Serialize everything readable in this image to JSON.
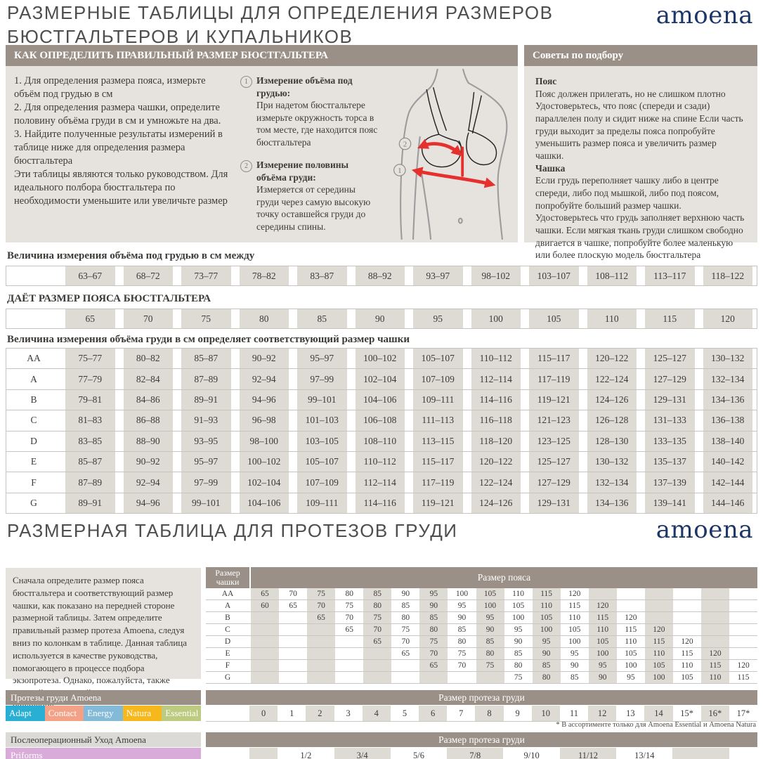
{
  "brand": {
    "wordmark": "amoena",
    "color": "#1c3767"
  },
  "header": {
    "title_line1": "РАЗМЕРНЫЕ ТАБЛИЦЫ ДЛЯ ОПРЕДЕЛЕНИЯ РАЗМЕРОВ",
    "title_line2": "БЮСТГАЛЬТЕРОВ И КУПАЛЬНИКОВ"
  },
  "how_to": {
    "header": "КАК ОПРЕДЕЛИТЬ ПРАВИЛЬНЫЙ РАЗМЕР БЮСТГАЛЬТЕРА",
    "steps": [
      "1. Для определения размера пояса, измерьте объём под грудью в см",
      "2. Для определения размера чашки, определите половину объёма груди в см и умножьте на два.",
      "3. Найдите полученные результаты измерений в таблице ниже для определения размера бюстгальтера",
      "Эти таблицы являются только руководством. Для идеального полбора бюстгальтера по необходимости уменьшите или увеличьте размер"
    ],
    "callouts": [
      {
        "num": "1",
        "title": "Измерение объёма под грудью:",
        "body": "При надетом бюстгальтере измерьте окружность торса в том месте, где находится пояс бюстгальтера"
      },
      {
        "num": "2",
        "title": "Измерение половины объёма груди:",
        "body": "Измеряется от середины груди через самую высокую точку оставшейся груди до середины спины."
      }
    ]
  },
  "tips": {
    "header": "Советы по подбору",
    "sections": [
      {
        "title": "Пояс",
        "body": "Пояс должен прилегать, но не слишком плотно Удостоверьтесь, что пояс (спереди и сзади) параллелен полу и сидит ниже на спине Если часть груди выходит за пределы пояса попробуйте уменьшить размер пояса и увеличить размер чашки."
      },
      {
        "title": "Чашка",
        "body": "Если грудь переполняет чашку либо в центре спереди, либо под мышкой, либо под поясом, попробуйте больший размер чашки. Удостоверьтесь что грудь заполняет верхнюю часть чашки. Если мягкая ткань груди слишком свободно двигается в чашке, попробуйте более маленькую или более плоскую модель бюстгальтера"
      }
    ]
  },
  "underband": {
    "heading": "Величина измерения объёма под грудью в см между",
    "values": [
      "63–67",
      "68–72",
      "73–77",
      "78–82",
      "83–87",
      "88–92",
      "93–97",
      "98–102",
      "103–107",
      "108–112",
      "113–117",
      "118–122"
    ]
  },
  "band": {
    "heading": "ДАЁТ РАЗМЕР ПОЯСА БЮСТГАЛЬТЕРА",
    "values": [
      "65",
      "70",
      "75",
      "80",
      "85",
      "90",
      "95",
      "100",
      "105",
      "110",
      "115",
      "120"
    ]
  },
  "cup_table": {
    "heading": "Величина измерения объёма груди в см определяет соответствующий размер чашки",
    "rows": [
      {
        "cup": "AA",
        "values": [
          "75–77",
          "80–82",
          "85–87",
          "90–92",
          "95–97",
          "100–102",
          "105–107",
          "110–112",
          "115–117",
          "120–122",
          "125–127",
          "130–132"
        ]
      },
      {
        "cup": "A",
        "values": [
          "77–79",
          "82–84",
          "87–89",
          "92–94",
          "97–99",
          "102–104",
          "107–109",
          "112–114",
          "117–119",
          "122–124",
          "127–129",
          "132–134"
        ]
      },
      {
        "cup": "B",
        "values": [
          "79–81",
          "84–86",
          "89–91",
          "94–96",
          "99–101",
          "104–106",
          "109–111",
          "114–116",
          "119–121",
          "124–126",
          "129–131",
          "134–136"
        ]
      },
      {
        "cup": "C",
        "values": [
          "81–83",
          "86–88",
          "91–93",
          "96–98",
          "101–103",
          "106–108",
          "111–113",
          "116–118",
          "121–123",
          "126–128",
          "131–133",
          "136–138"
        ]
      },
      {
        "cup": "D",
        "values": [
          "83–85",
          "88–90",
          "93–95",
          "98–100",
          "103–105",
          "108–110",
          "113–115",
          "118–120",
          "123–125",
          "128–130",
          "133–135",
          "138–140"
        ]
      },
      {
        "cup": "E",
        "values": [
          "85–87",
          "90–92",
          "95–97",
          "100–102",
          "105–107",
          "110–112",
          "115–117",
          "120–122",
          "125–127",
          "130–132",
          "135–137",
          "140–142"
        ]
      },
      {
        "cup": "F",
        "values": [
          "87–89",
          "92–94",
          "97–99",
          "102–104",
          "107–109",
          "112–114",
          "117–119",
          "122–124",
          "127–129",
          "132–134",
          "137–139",
          "142–144"
        ]
      },
      {
        "cup": "G",
        "values": [
          "89–91",
          "94–96",
          "99–101",
          "104–106",
          "109–111",
          "114–116",
          "119–121",
          "124–126",
          "129–131",
          "134–136",
          "139–141",
          "144–146"
        ]
      }
    ]
  },
  "prosthesis": {
    "title": "РАЗМЕРНАЯ ТАБЛИЦА ДЛЯ ПРОТЕЗОВ ГРУДИ",
    "intro": "Сначала определите размер пояса бюстгальтера и соответствующий размер чашки, как показано на передней стороне размерной таблицы. Затем определите правильный размер протеза Amoena, следуя вниз по колонкам в таблице. Данная таблица используется в качестве руководства, помогающего в процессе подбора экзопротеза. Однако, пожалуйста, также полагайтесь на свой опыт и индивидуальные ощущения.",
    "band_table": {
      "corner": "Размер чашки",
      "header": "Размер пояса",
      "rows": [
        {
          "cup": "AA",
          "values": [
            "65",
            "70",
            "75",
            "80",
            "85",
            "90",
            "95",
            "100",
            "105",
            "110",
            "115",
            "120",
            "",
            "",
            "",
            "",
            "",
            ""
          ]
        },
        {
          "cup": "A",
          "values": [
            "60",
            "65",
            "70",
            "75",
            "80",
            "85",
            "90",
            "95",
            "100",
            "105",
            "110",
            "115",
            "120",
            "",
            "",
            "",
            "",
            ""
          ]
        },
        {
          "cup": "B",
          "values": [
            "",
            "",
            "65",
            "70",
            "75",
            "80",
            "85",
            "90",
            "95",
            "100",
            "105",
            "110",
            "115",
            "120",
            "",
            "",
            "",
            ""
          ]
        },
        {
          "cup": "C",
          "values": [
            "",
            "",
            "",
            "65",
            "70",
            "75",
            "80",
            "85",
            "90",
            "95",
            "100",
            "105",
            "110",
            "115",
            "120",
            "",
            "",
            ""
          ]
        },
        {
          "cup": "D",
          "values": [
            "",
            "",
            "",
            "",
            "65",
            "70",
            "75",
            "80",
            "85",
            "90",
            "95",
            "100",
            "105",
            "110",
            "115",
            "120",
            "",
            ""
          ]
        },
        {
          "cup": "E",
          "values": [
            "",
            "",
            "",
            "",
            "",
            "65",
            "70",
            "75",
            "80",
            "85",
            "90",
            "95",
            "100",
            "105",
            "110",
            "115",
            "120",
            ""
          ]
        },
        {
          "cup": "F",
          "values": [
            "",
            "",
            "",
            "",
            "",
            "",
            "65",
            "70",
            "75",
            "80",
            "85",
            "90",
            "95",
            "100",
            "105",
            "110",
            "115",
            "120"
          ]
        },
        {
          "cup": "G",
          "values": [
            "",
            "",
            "",
            "",
            "",
            "",
            "",
            "",
            "",
            "75",
            "80",
            "85",
            "90",
            "95",
            "100",
            "105",
            "110",
            "115"
          ]
        }
      ]
    },
    "products": {
      "header": "Протезы груди Amoena",
      "chips": [
        {
          "label": "Adapt",
          "color": "#29afd4"
        },
        {
          "label": "Contact",
          "color": "#f4a287"
        },
        {
          "label": "Energy",
          "color": "#83bad7"
        },
        {
          "label": "Natura",
          "color": "#f6b81c"
        },
        {
          "label": "Essential",
          "color": "#bccb80"
        }
      ]
    },
    "size_table": {
      "header": "Размер протеза груди",
      "values": [
        "0",
        "1",
        "2",
        "3",
        "4",
        "5",
        "6",
        "7",
        "8",
        "9",
        "10",
        "11",
        "12",
        "13",
        "14",
        "15*",
        "16*",
        "17*"
      ],
      "footnote": "* В ассортименте только для  Amoena Essential и Amoena Natura"
    },
    "aftercare": {
      "header": "Послеоперационный Уход Amoena",
      "product": "Priforms",
      "color": "#d9abd9"
    },
    "priforms_table": {
      "header": "Размер протеза груди",
      "values": [
        "1/2",
        "3/4",
        "5/6",
        "7/8",
        "9/10",
        "11/12",
        "13/14"
      ]
    }
  },
  "illustration": {
    "label_1": "1",
    "label_2": "2",
    "arrow_color": "#e6302e"
  }
}
